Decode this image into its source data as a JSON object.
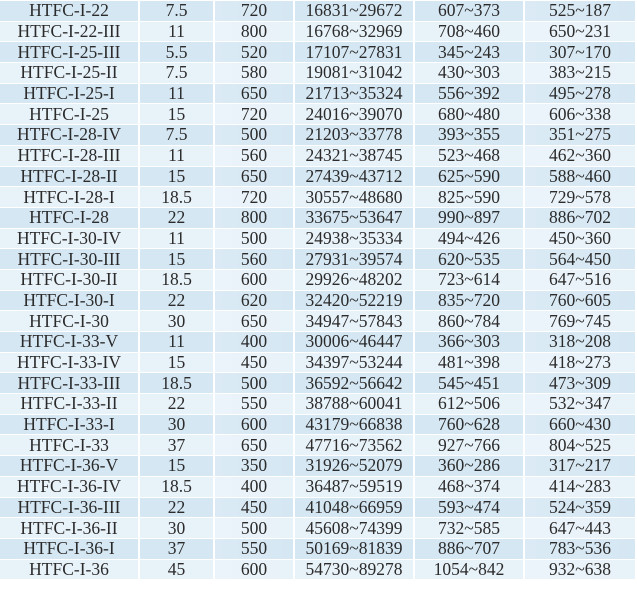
{
  "table": {
    "rows": [
      [
        "HTFC-I-22",
        "7.5",
        "720",
        "16831~29672",
        "607~373",
        "525~187"
      ],
      [
        "HTFC-I-22-III",
        "11",
        "800",
        "16768~32969",
        "708~460",
        "650~231"
      ],
      [
        "HTFC-I-25-III",
        "5.5",
        "520",
        "17107~27831",
        "345~243",
        "307~170"
      ],
      [
        "HTFC-I-25-II",
        "7.5",
        "580",
        "19081~31042",
        "430~303",
        "383~215"
      ],
      [
        "HTFC-I-25-I",
        "11",
        "650",
        "21713~35324",
        "556~392",
        "495~278"
      ],
      [
        "HTFC-I-25",
        "15",
        "720",
        "24016~39070",
        "680~480",
        "606~338"
      ],
      [
        "HTFC-I-28-IV",
        "7.5",
        "500",
        "21203~33778",
        "393~355",
        "351~275"
      ],
      [
        "HTFC-I-28-III",
        "11",
        "560",
        "24321~38745",
        "523~468",
        "462~360"
      ],
      [
        "HTFC-I-28-II",
        "15",
        "650",
        "27439~43712",
        "625~590",
        "588~460"
      ],
      [
        "HTFC-I-28-I",
        "18.5",
        "720",
        "30557~48680",
        "825~590",
        "729~578"
      ],
      [
        "HTFC-I-28",
        "22",
        "800",
        "33675~53647",
        "990~897",
        "886~702"
      ],
      [
        "HTFC-I-30-IV",
        "11",
        "500",
        "24938~35334",
        "494~426",
        "450~360"
      ],
      [
        "HTFC-I-30-III",
        "15",
        "560",
        "27931~39574",
        "620~535",
        "564~450"
      ],
      [
        "HTFC-I-30-II",
        "18.5",
        "600",
        "29926~48202",
        "723~614",
        "647~516"
      ],
      [
        "HTFC-I-30-I",
        "22",
        "620",
        "32420~52219",
        "835~720",
        "760~605"
      ],
      [
        "HTFC-I-30",
        "30",
        "650",
        "34947~57843",
        "860~784",
        "769~745"
      ],
      [
        "HTFC-I-33-V",
        "11",
        "400",
        "30006~46447",
        "366~303",
        "318~208"
      ],
      [
        "HTFC-I-33-IV",
        "15",
        "450",
        "34397~53244",
        "481~398",
        "418~273"
      ],
      [
        "HTFC-I-33-III",
        "18.5",
        "500",
        "36592~56642",
        "545~451",
        "473~309"
      ],
      [
        "HTFC-I-33-II",
        "22",
        "550",
        "38788~60041",
        "612~506",
        "532~347"
      ],
      [
        "HTFC-I-33-I",
        "30",
        "600",
        "43179~66838",
        "760~628",
        "660~430"
      ],
      [
        "HTFC-I-33",
        "37",
        "650",
        "47716~73562",
        "927~766",
        "804~525"
      ],
      [
        "HTFC-I-36-V",
        "15",
        "350",
        "31926~52079",
        "360~286",
        "317~217"
      ],
      [
        "HTFC-I-36-IV",
        "18.5",
        "400",
        "36487~59519",
        "468~374",
        "414~283"
      ],
      [
        "HTFC-I-36-III",
        "22",
        "450",
        "41048~66959",
        "593~474",
        "524~359"
      ],
      [
        "HTFC-I-36-II",
        "30",
        "500",
        "45608~74399",
        "732~585",
        "647~443"
      ],
      [
        "HTFC-I-36-I",
        "37",
        "550",
        "50169~81839",
        "886~707",
        "783~536"
      ],
      [
        "HTFC-I-36",
        "45",
        "600",
        "54730~89278",
        "1054~842",
        "932~638"
      ]
    ]
  },
  "colors": {
    "cell_dark": "#d5e7f3",
    "cell_light": "#e8f2f9",
    "text": "#2b2b2b"
  }
}
